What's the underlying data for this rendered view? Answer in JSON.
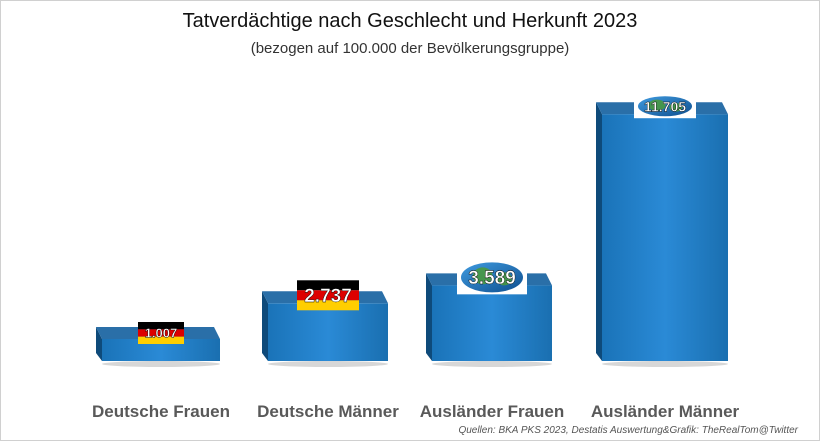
{
  "chart_data": {
    "type": "bar",
    "title": "Tatverdächtige nach Geschlecht und Herkunft 2023",
    "subtitle": "(bezogen auf 100.000 der Bevölkerungsgruppe)",
    "categories": [
      "Deutsche Frauen",
      "Deutsche Männer",
      "Ausländer Frauen",
      "Ausländer Männer"
    ],
    "values": [
      1007,
      2737,
      3589,
      11705
    ],
    "value_labels": [
      "1.007",
      "2.737",
      "3.589",
      "11.705"
    ],
    "label_badges": [
      "german-flag-icon",
      "german-flag-icon",
      "globe-icon",
      "globe-icon"
    ],
    "ylim": [
      0,
      12000
    ],
    "grid": false,
    "legend": "none",
    "bar_color": "#1f7fc8",
    "bar_side_color": "#0e4a7a",
    "bar_top_color": "#2a6fa8"
  },
  "source": "Quellen: BKA PKS 2023, Destatis Auswertung&Grafik: TheRealTom@Twitter"
}
